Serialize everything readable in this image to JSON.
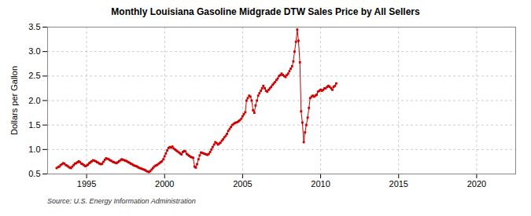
{
  "chart_data": {
    "type": "line",
    "title": "Monthly Louisiana Gasoline Midgrade DTW Sales Price by All Sellers",
    "ylabel": "Dollars per Gallon",
    "source": "Source: U.S. Energy Information Administration",
    "color": "#CC0000",
    "marker": "square",
    "line_style": "solid",
    "grid": true,
    "xlim": [
      1992.5,
      2022.5
    ],
    "ylim": [
      0.5,
      3.5
    ],
    "xticks": [
      1995,
      2000,
      2005,
      2010,
      2015,
      2020
    ],
    "yticks": [
      0.5,
      {
        "value": 1.0,
        "label": "1.0"
      },
      1.5,
      {
        "value": 2.0,
        "label": "2.0"
      },
      2.5,
      {
        "value": 3.0,
        "label": "3.0"
      },
      3.5
    ],
    "x": [
      1993.08,
      1993.17,
      1993.25,
      1993.33,
      1993.42,
      1993.5,
      1993.58,
      1993.67,
      1993.75,
      1993.83,
      1993.92,
      1994.0,
      1994.08,
      1994.17,
      1994.25,
      1994.33,
      1994.42,
      1994.5,
      1994.58,
      1994.67,
      1994.75,
      1994.83,
      1994.92,
      1995.0,
      1995.08,
      1995.17,
      1995.25,
      1995.33,
      1995.42,
      1995.5,
      1995.58,
      1995.67,
      1995.75,
      1995.83,
      1995.92,
      1996.0,
      1996.08,
      1996.17,
      1996.25,
      1996.33,
      1996.42,
      1996.5,
      1996.58,
      1996.67,
      1996.75,
      1996.83,
      1996.92,
      1997.0,
      1997.08,
      1997.17,
      1997.25,
      1997.33,
      1997.42,
      1997.5,
      1997.58,
      1997.67,
      1997.75,
      1997.83,
      1997.92,
      1998.0,
      1998.08,
      1998.17,
      1998.25,
      1998.33,
      1998.42,
      1998.5,
      1998.58,
      1998.67,
      1998.75,
      1998.83,
      1998.92,
      1999.0,
      1999.08,
      1999.17,
      1999.25,
      1999.33,
      1999.42,
      1999.5,
      1999.58,
      1999.67,
      1999.75,
      1999.83,
      1999.92,
      2000.0,
      2000.08,
      2000.17,
      2000.25,
      2000.33,
      2000.42,
      2000.5,
      2000.58,
      2000.67,
      2000.75,
      2000.83,
      2000.92,
      2001.0,
      2001.08,
      2001.17,
      2001.25,
      2001.33,
      2001.42,
      2001.5,
      2001.58,
      2001.67,
      2001.75,
      2001.83,
      2001.92,
      2002.0,
      2002.08,
      2002.17,
      2002.25,
      2002.33,
      2002.42,
      2002.5,
      2002.58,
      2002.67,
      2002.75,
      2002.83,
      2002.92,
      2003.0,
      2003.08,
      2003.17,
      2003.25,
      2003.33,
      2003.42,
      2003.5,
      2003.58,
      2003.67,
      2003.75,
      2003.83,
      2003.92,
      2004.0,
      2004.08,
      2004.17,
      2004.25,
      2004.33,
      2004.42,
      2004.5,
      2004.58,
      2004.67,
      2004.75,
      2004.83,
      2004.92,
      2005.0,
      2005.08,
      2005.17,
      2005.25,
      2005.33,
      2005.42,
      2005.5,
      2005.58,
      2005.67,
      2005.75,
      2005.83,
      2005.92,
      2006.0,
      2006.08,
      2006.17,
      2006.25,
      2006.33,
      2006.42,
      2006.5,
      2006.58,
      2006.67,
      2006.75,
      2006.83,
      2006.92,
      2007.0,
      2007.08,
      2007.17,
      2007.25,
      2007.33,
      2007.42,
      2007.5,
      2007.58,
      2007.67,
      2007.75,
      2007.83,
      2007.92,
      2008.0,
      2008.08,
      2008.17,
      2008.25,
      2008.33,
      2008.42,
      2008.5,
      2008.58,
      2008.67,
      2008.75,
      2008.83,
      2008.92,
      2009.0,
      2009.08,
      2009.17,
      2009.25,
      2009.33,
      2009.42,
      2009.5,
      2009.58,
      2009.67,
      2009.75,
      2009.83,
      2009.92,
      2010.0,
      2010.08,
      2010.17,
      2010.25,
      2010.33,
      2010.42,
      2010.5,
      2010.58,
      2010.67,
      2010.75,
      2010.83,
      2010.92,
      2011.0
    ],
    "values": [
      0.62,
      0.64,
      0.65,
      0.68,
      0.7,
      0.72,
      0.71,
      0.68,
      0.67,
      0.65,
      0.63,
      0.62,
      0.65,
      0.68,
      0.71,
      0.72,
      0.74,
      0.76,
      0.74,
      0.71,
      0.7,
      0.68,
      0.66,
      0.67,
      0.69,
      0.72,
      0.74,
      0.76,
      0.78,
      0.77,
      0.76,
      0.74,
      0.73,
      0.71,
      0.7,
      0.71,
      0.75,
      0.79,
      0.82,
      0.81,
      0.8,
      0.78,
      0.77,
      0.75,
      0.74,
      0.73,
      0.72,
      0.74,
      0.76,
      0.78,
      0.8,
      0.79,
      0.78,
      0.77,
      0.76,
      0.74,
      0.73,
      0.71,
      0.7,
      0.68,
      0.67,
      0.66,
      0.65,
      0.63,
      0.62,
      0.61,
      0.6,
      0.59,
      0.58,
      0.56,
      0.55,
      0.54,
      0.56,
      0.59,
      0.62,
      0.65,
      0.67,
      0.68,
      0.7,
      0.72,
      0.74,
      0.76,
      0.8,
      0.86,
      0.92,
      0.98,
      1.03,
      1.05,
      1.04,
      1.06,
      1.02,
      1.0,
      0.98,
      0.96,
      0.94,
      0.92,
      0.9,
      0.95,
      0.97,
      0.96,
      0.91,
      0.89,
      0.87,
      0.85,
      0.84,
      0.83,
      0.65,
      0.63,
      0.7,
      0.8,
      0.88,
      0.94,
      0.93,
      0.92,
      0.91,
      0.9,
      0.89,
      0.91,
      0.95,
      1.0,
      1.05,
      1.1,
      1.15,
      1.13,
      1.1,
      1.12,
      1.14,
      1.18,
      1.21,
      1.25,
      1.28,
      1.32,
      1.38,
      1.42,
      1.46,
      1.5,
      1.52,
      1.54,
      1.55,
      1.56,
      1.58,
      1.6,
      1.63,
      1.68,
      1.72,
      1.76,
      2.0,
      2.05,
      2.1,
      2.08,
      2.0,
      1.8,
      1.75,
      1.9,
      2.0,
      2.1,
      2.15,
      2.2,
      2.25,
      2.3,
      2.25,
      2.2,
      2.18,
      2.22,
      2.25,
      2.28,
      2.32,
      2.35,
      2.38,
      2.42,
      2.45,
      2.5,
      2.52,
      2.55,
      2.52,
      2.5,
      2.48,
      2.52,
      2.55,
      2.6,
      2.65,
      2.7,
      2.8,
      3.0,
      3.2,
      3.45,
      3.22,
      2.78,
      1.78,
      1.55,
      1.15,
      1.35,
      1.5,
      1.65,
      1.85,
      2.05,
      2.08,
      2.1,
      2.08,
      2.1,
      2.12,
      2.18,
      2.2,
      2.22,
      2.2,
      2.22,
      2.25,
      2.25,
      2.28,
      2.3,
      2.28,
      2.25,
      2.22,
      2.28,
      2.3,
      2.35
    ]
  }
}
